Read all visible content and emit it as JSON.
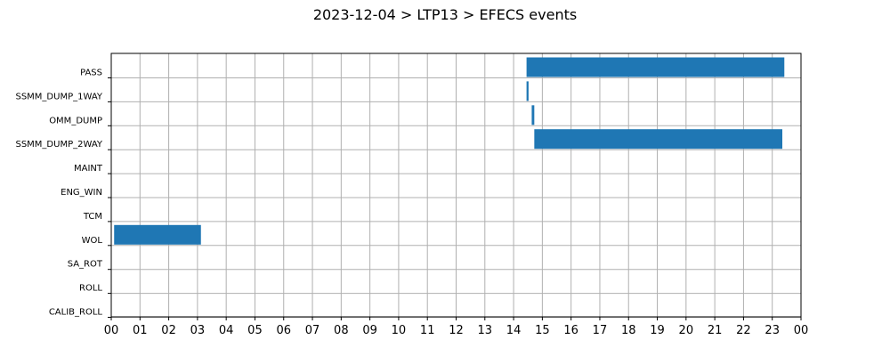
{
  "chart_data": {
    "type": "bar",
    "orientation": "horizontal-timeline",
    "title": "2023-12-04 > LTP13 > EFECS events",
    "xlabel": "",
    "ylabel": "",
    "x_unit": "hour of day",
    "xlim": [
      0,
      24
    ],
    "x_tick_labels": [
      "00",
      "01",
      "02",
      "03",
      "04",
      "05",
      "06",
      "07",
      "08",
      "09",
      "10",
      "11",
      "12",
      "13",
      "14",
      "15",
      "16",
      "17",
      "18",
      "19",
      "20",
      "21",
      "22",
      "23",
      "00"
    ],
    "grid": true,
    "bar_color": "#1f77b4",
    "categories": [
      "PASS",
      "SSMM_DUMP_1WAY",
      "OMM_DUMP",
      "SSMM_DUMP_2WAY",
      "MAINT",
      "ENG_WIN",
      "TCM",
      "WOL",
      "SA_ROT",
      "ROLL",
      "CALIB_ROLL"
    ],
    "events": [
      {
        "category": "PASS",
        "start": 14.45,
        "end": 23.42
      },
      {
        "category": "SSMM_DUMP_1WAY",
        "start": 14.45,
        "end": 14.52
      },
      {
        "category": "OMM_DUMP",
        "start": 14.63,
        "end": 14.72
      },
      {
        "category": "SSMM_DUMP_2WAY",
        "start": 14.72,
        "end": 23.35
      },
      {
        "category": "WOL",
        "start": 0.1,
        "end": 3.12
      }
    ]
  }
}
